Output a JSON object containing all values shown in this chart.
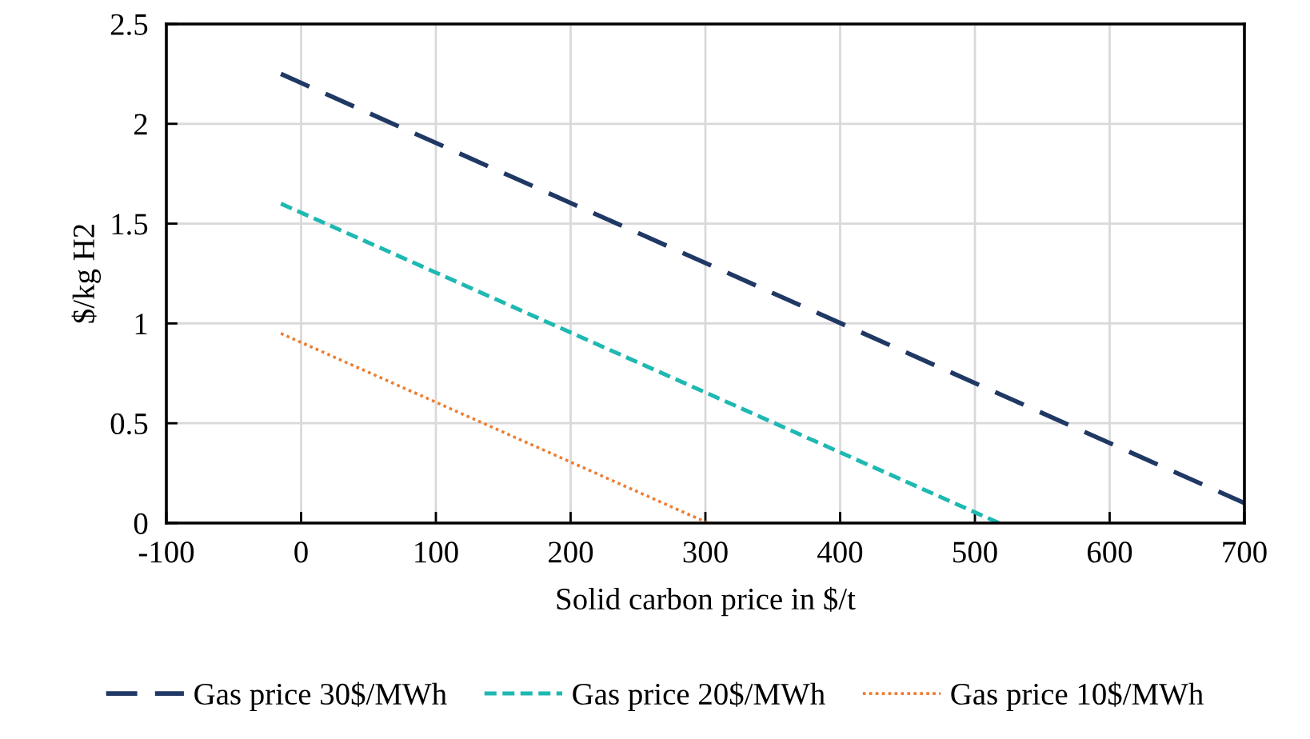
{
  "chart_data": {
    "type": "line",
    "xlabel": "Solid carbon price in $/t",
    "ylabel": "$/kg H2",
    "xlim": [
      -100,
      700
    ],
    "ylim": [
      0,
      2.5
    ],
    "xticks": [
      -100,
      0,
      100,
      200,
      300,
      400,
      500,
      600,
      700
    ],
    "yticks": [
      0,
      0.5,
      1,
      1.5,
      2,
      2.5
    ],
    "grid": true,
    "legend": "bottom",
    "marker": "none",
    "series": [
      {
        "name": "Gas price 30$/MWh",
        "color": "#203864",
        "line_style": "dashed",
        "x": [
          -15,
          700
        ],
        "values": [
          2.25,
          0.1
        ]
      },
      {
        "name": "Gas price 20$/MWh",
        "color": "#1fb8b2",
        "line_style": "dashed",
        "x": [
          -15,
          518
        ],
        "values": [
          1.6,
          0
        ]
      },
      {
        "name": "Gas price 10$/MWh",
        "color": "#ed7d31",
        "line_style": "dotted",
        "x": [
          -15,
          302
        ],
        "values": [
          0.95,
          0
        ]
      }
    ]
  }
}
